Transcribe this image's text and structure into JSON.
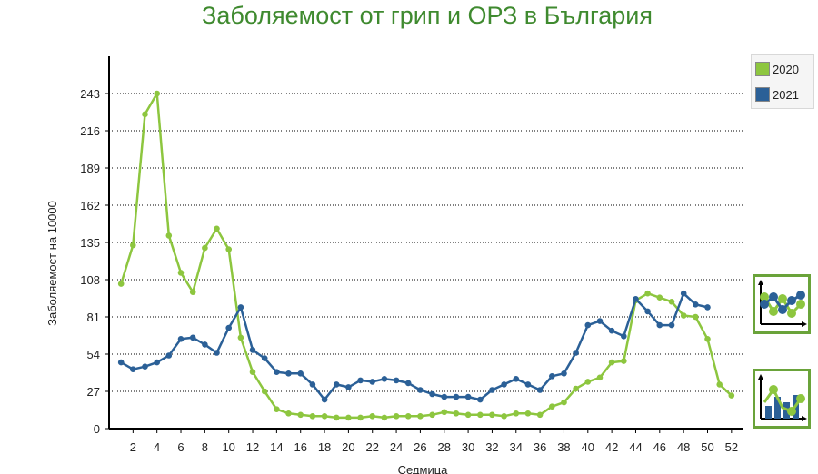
{
  "title": "Заболяемост от грип и ОРЗ в България",
  "legend": {
    "items": [
      {
        "label": "2020",
        "color": "#8dc63f"
      },
      {
        "label": "2021",
        "color": "#2b6097"
      }
    ]
  },
  "buttons": {
    "line_chart": "line-chart-icon",
    "bar_chart": "bar-chart-icon"
  },
  "chart_data": {
    "type": "line",
    "title": "Заболяемост от грип и ОРЗ в България",
    "xlabel": "Седмица",
    "ylabel": "Заболяемост на 10000",
    "ylim": [
      0,
      270
    ],
    "xlim": [
      0,
      53
    ],
    "yticks": [
      0,
      27,
      54,
      81,
      108,
      135,
      162,
      189,
      216,
      243
    ],
    "xticks": [
      2,
      4,
      6,
      8,
      10,
      12,
      14,
      16,
      18,
      20,
      22,
      24,
      26,
      28,
      30,
      32,
      34,
      36,
      38,
      40,
      42,
      44,
      46,
      48,
      50,
      52
    ],
    "grid": "horizontal dotted",
    "legend_position": "top-right",
    "series": [
      {
        "name": "2020",
        "color": "#8dc63f",
        "x": [
          1,
          2,
          3,
          4,
          5,
          6,
          7,
          8,
          9,
          10,
          11,
          12,
          13,
          14,
          15,
          16,
          17,
          18,
          19,
          20,
          21,
          22,
          23,
          24,
          25,
          26,
          27,
          28,
          29,
          30,
          31,
          32,
          33,
          34,
          35,
          36,
          37,
          38,
          39,
          40,
          41,
          42,
          43,
          44,
          45,
          46,
          47,
          48,
          49,
          50,
          51,
          52
        ],
        "values": [
          105,
          133,
          228,
          243,
          140,
          113,
          99,
          131,
          145,
          130,
          66,
          41,
          27,
          14,
          11,
          10,
          9,
          9,
          8,
          8,
          8,
          9,
          8,
          9,
          9,
          9,
          10,
          12,
          11,
          10,
          10,
          10,
          9,
          11,
          11,
          10,
          16,
          19,
          29,
          34,
          37,
          48,
          49,
          93,
          98,
          95,
          92,
          82,
          81,
          65,
          32,
          24
        ]
      },
      {
        "name": "2021",
        "color": "#2b6097",
        "x": [
          1,
          2,
          3,
          4,
          5,
          6,
          7,
          8,
          9,
          10,
          11,
          12,
          13,
          14,
          15,
          16,
          17,
          18,
          19,
          20,
          21,
          22,
          23,
          24,
          25,
          26,
          27,
          28,
          29,
          30,
          31,
          32,
          33,
          34,
          35,
          36,
          37,
          38,
          39,
          40,
          41,
          42,
          43,
          44,
          45,
          46,
          47,
          48,
          49,
          50
        ],
        "values": [
          48,
          43,
          45,
          48,
          53,
          65,
          66,
          61,
          55,
          73,
          88,
          57,
          51,
          41,
          40,
          40,
          32,
          21,
          32,
          30,
          35,
          34,
          36,
          35,
          33,
          28,
          25,
          23,
          23,
          23,
          21,
          28,
          32,
          36,
          32,
          28,
          38,
          40,
          55,
          75,
          78,
          71,
          67,
          94,
          85,
          75,
          75,
          98,
          90,
          88
        ]
      }
    ]
  }
}
